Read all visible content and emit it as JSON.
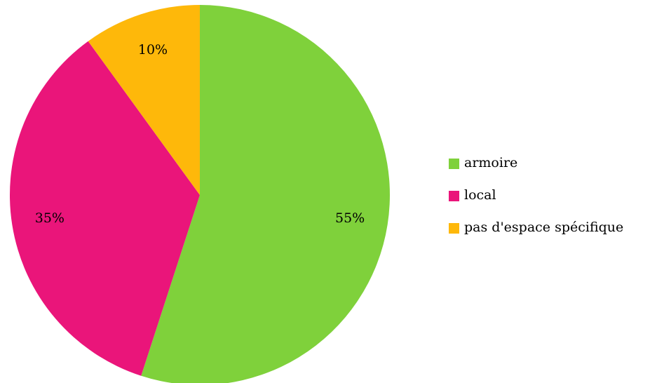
{
  "chart_data": {
    "type": "pie",
    "categories": [
      "armoire",
      "local",
      "pas d'espace spécifique"
    ],
    "values": [
      55,
      35,
      10
    ],
    "value_labels": [
      "55%",
      "35%",
      "10%"
    ],
    "colors": [
      "#7fd13b",
      "#ea157a",
      "#feb80a"
    ],
    "legend": "right"
  }
}
